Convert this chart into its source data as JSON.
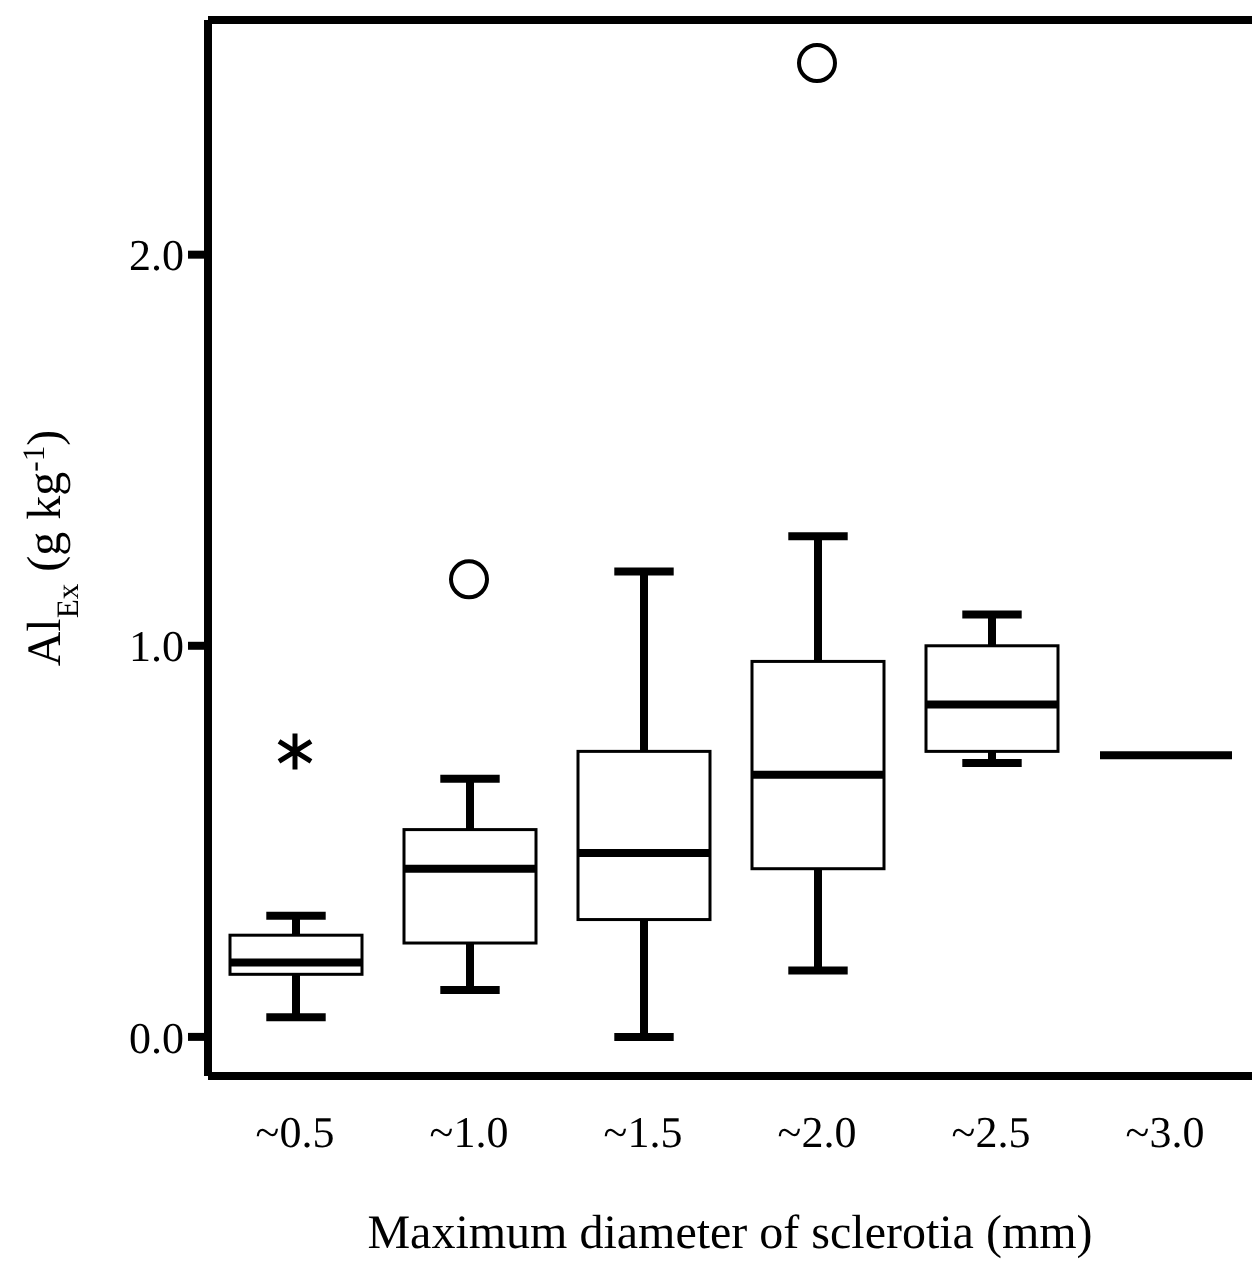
{
  "chart_data": {
    "type": "box",
    "xlabel": "Maximum diameter of sclerotia (mm)",
    "ylabel": "Al$_{Ex}$ (g kg$^{-1}$)",
    "categories": [
      "~0.5",
      "~1.0",
      "~1.5",
      "~2.0",
      "~2.5",
      "~3.0"
    ],
    "ylim": [
      -0.1,
      2.6
    ],
    "yticks": [
      {
        "value": 0,
        "label": "0.0"
      },
      {
        "value": 1,
        "label": "1.0"
      },
      {
        "value": 2,
        "label": "2.0"
      }
    ],
    "boxes": [
      {
        "low": 0.05,
        "q1": 0.16,
        "median": 0.19,
        "q3": 0.26,
        "high": 0.31
      },
      {
        "low": 0.12,
        "q1": 0.24,
        "median": 0.43,
        "q3": 0.53,
        "high": 0.66,
        "outliers": [
          1.17
        ]
      },
      {
        "low": 0.0,
        "q1": 0.3,
        "median": 0.47,
        "q3": 0.73,
        "high": 1.19
      },
      {
        "low": 0.17,
        "q1": 0.43,
        "median": 0.67,
        "q3": 0.96,
        "high": 1.28,
        "outliers": [
          2.49
        ]
      },
      {
        "low": 0.7,
        "q1": 0.73,
        "median": 0.85,
        "q3": 1.0,
        "high": 1.08
      },
      {
        "low": 0.72,
        "q1": 0.72,
        "median": 0.72,
        "q3": 0.72,
        "high": 0.72
      }
    ],
    "series": [
      {
        "type": "scatter",
        "x": [
          "~0.5"
        ],
        "values": [
          0.73
        ],
        "marker": "cross",
        "color": "#000000"
      }
    ],
    "color": "#000000",
    "marker": "circle",
    "grid": false,
    "legend": false
  }
}
